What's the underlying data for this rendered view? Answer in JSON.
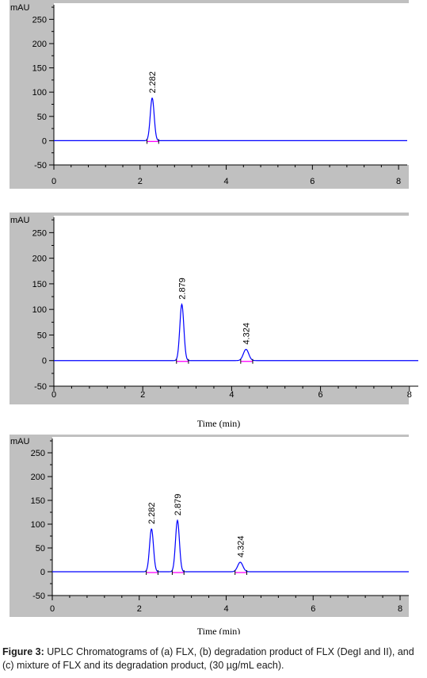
{
  "chart_data": [
    {
      "type": "line",
      "title": "",
      "ylabel": "mAU",
      "xlabel": "",
      "xlim": [
        0,
        8.2
      ],
      "ylim": [
        -50,
        280
      ],
      "xticks": [
        0,
        2,
        4,
        6,
        8
      ],
      "yticks": [
        -50,
        0,
        50,
        100,
        150,
        200,
        250
      ],
      "grid": false,
      "series": [
        {
          "color": "#0000ff",
          "peaks": [
            {
              "rt": 2.282,
              "height": 88,
              "label": "2.282"
            }
          ]
        }
      ]
    },
    {
      "type": "line",
      "title": "",
      "ylabel": "mAU",
      "xlabel": "Time (min)",
      "xlim": [
        0,
        8.2
      ],
      "ylim": [
        -50,
        280
      ],
      "xticks": [
        0,
        2,
        4,
        6,
        8
      ],
      "yticks": [
        -50,
        0,
        50,
        100,
        150,
        200,
        250
      ],
      "grid": false,
      "series": [
        {
          "color": "#0000ff",
          "peaks": [
            {
              "rt": 2.879,
              "height": 110,
              "label": "2.879"
            },
            {
              "rt": 4.324,
              "height": 22,
              "label": "4.324"
            }
          ]
        }
      ]
    },
    {
      "type": "line",
      "title": "",
      "ylabel": "mAU",
      "xlabel": "Time (min)",
      "xlim": [
        0,
        8.2
      ],
      "ylim": [
        -50,
        280
      ],
      "xticks": [
        0,
        2,
        4,
        6,
        8
      ],
      "yticks": [
        -50,
        0,
        50,
        100,
        150,
        200,
        250
      ],
      "grid": false,
      "series": [
        {
          "color": "#0000ff",
          "peaks": [
            {
              "rt": 2.282,
              "height": 90,
              "label": "2.282"
            },
            {
              "rt": 2.879,
              "height": 108,
              "label": "2.879"
            },
            {
              "rt": 4.324,
              "height": 20,
              "label": "4.324"
            }
          ]
        }
      ]
    }
  ],
  "caption": {
    "label": "Figure 3:",
    "text": " UPLC Chromatograms of (a) FLX, (b) degradation product of FLX (DegI and II), and (c) mixture of FLX and its degradation product, (30 µg/mL each)."
  },
  "colors": {
    "trace": "#0000ff",
    "baseline_marker": "#ff00ff",
    "panel_bg": "#c0c0c0"
  }
}
